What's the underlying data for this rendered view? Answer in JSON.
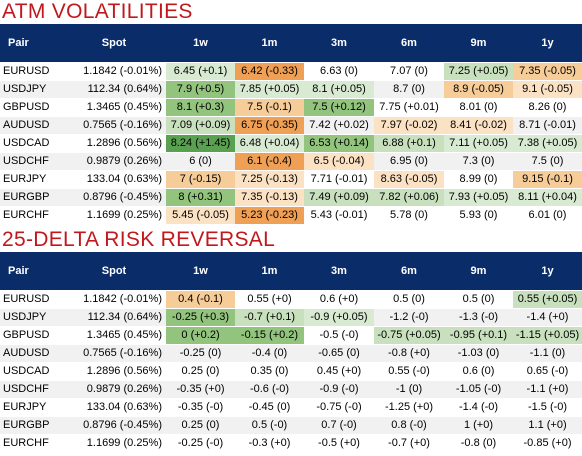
{
  "atm": {
    "title": "ATM VOLATILITIES",
    "headers": [
      "Pair",
      "Spot",
      "1w",
      "1m",
      "3m",
      "6m",
      "9m",
      "1y"
    ],
    "rows": [
      {
        "pair": "EURUSD",
        "spot": "1.1842 (-0.01%)",
        "vals": [
          "6.45 (+0.1)",
          "6.42 (-0.33)",
          "6.63 (0)",
          "7.07 (0)",
          "7.25 (+0.05)",
          "7.35 (-0.05)"
        ],
        "colors": [
          "lgreen2",
          "orange",
          "",
          "",
          "lgreen",
          "lorange"
        ]
      },
      {
        "pair": "USDJPY",
        "spot": "112.34 (0.64%)",
        "vals": [
          "7.9 (+0.5)",
          "7.85 (+0.05)",
          "8.1 (+0.05)",
          "8.7 (0)",
          "8.9 (-0.05)",
          "9.1 (-0.05)"
        ],
        "colors": [
          "green",
          "lgreen2",
          "lgreen2",
          "",
          "lorange",
          "llorange"
        ]
      },
      {
        "pair": "GBPUSD",
        "spot": "1.3465 (0.45%)",
        "vals": [
          "8.1 (+0.3)",
          "7.5 (-0.1)",
          "7.5 (+0.12)",
          "7.75 (+0.01)",
          "8.01 (0)",
          "8.26 (0)"
        ],
        "colors": [
          "green",
          "lorange",
          "green",
          "",
          "",
          ""
        ]
      },
      {
        "pair": "AUDUSD",
        "spot": "0.7565 (-0.16%)",
        "vals": [
          "7.09 (+0.09)",
          "6.75 (-0.35)",
          "7.42 (+0.02)",
          "7.97 (-0.02)",
          "8.41 (-0.02)",
          "8.71 (-0.01)"
        ],
        "colors": [
          "lgreen",
          "orange",
          "",
          "llorange",
          "llorange",
          ""
        ]
      },
      {
        "pair": "USDCAD",
        "spot": "1.2896 (0.56%)",
        "vals": [
          "8.24 (+1.45)",
          "6.48 (+0.04)",
          "6.53 (+0.14)",
          "6.88 (+0.1)",
          "7.11 (+0.05)",
          "7.38 (+0.05)"
        ],
        "colors": [
          "dgreen",
          "lgreen2",
          "green",
          "lgreen",
          "lgreen2",
          "lgreen2"
        ]
      },
      {
        "pair": "USDCHF",
        "spot": "0.9879 (0.26%)",
        "vals": [
          "6 (0)",
          "6.1 (-0.4)",
          "6.5 (-0.04)",
          "6.95 (0)",
          "7.3 (0)",
          "7.5 (0)"
        ],
        "colors": [
          "",
          "orange",
          "llorange",
          "",
          "",
          ""
        ]
      },
      {
        "pair": "EURJPY",
        "spot": "133.04 (0.63%)",
        "vals": [
          "7 (-0.15)",
          "7.25 (-0.13)",
          "7.71 (-0.01)",
          "8.63 (-0.05)",
          "8.99 (0)",
          "9.15 (-0.1)"
        ],
        "colors": [
          "lorange",
          "llorange",
          "",
          "llorange",
          "",
          "lorange"
        ]
      },
      {
        "pair": "EURGBP",
        "spot": "0.8796 (-0.45%)",
        "vals": [
          "8 (+0.31)",
          "7.35 (-0.13)",
          "7.49 (+0.09)",
          "7.82 (+0.06)",
          "7.93 (+0.05)",
          "8.11 (+0.04)"
        ],
        "colors": [
          "green",
          "llorange",
          "lgreen",
          "lgreen",
          "lgreen2",
          "lgreen2"
        ]
      },
      {
        "pair": "EURCHF",
        "spot": "1.1699 (0.25%)",
        "vals": [
          "5.45 (-0.05)",
          "5.23 (-0.23)",
          "5.43 (-0.01)",
          "5.78 (0)",
          "5.93 (0)",
          "6.01 (0)"
        ],
        "colors": [
          "llorange",
          "orange",
          "",
          "",
          "",
          ""
        ]
      }
    ]
  },
  "rr": {
    "title": "25-DELTA RISK REVERSAL",
    "headers": [
      "Pair",
      "Spot",
      "1w",
      "1m",
      "3m",
      "6m",
      "9m",
      "1y"
    ],
    "rows": [
      {
        "pair": "EURUSD",
        "spot": "1.1842 (-0.01%)",
        "vals": [
          "0.4 (-0.1)",
          "0.55 (+0)",
          "0.6 (+0)",
          "0.5 (0)",
          "0.5 (0)",
          "0.55 (+0.05)"
        ],
        "colors": [
          "lorange",
          "",
          "",
          "",
          "",
          "lgreen"
        ]
      },
      {
        "pair": "USDJPY",
        "spot": "112.34 (0.64%)",
        "vals": [
          "-0.25 (+0.3)",
          "-0.7 (+0.1)",
          "-0.9 (+0.05)",
          "-1.2 (-0)",
          "-1.3 (-0)",
          "-1.4 (+0)"
        ],
        "colors": [
          "green",
          "lgreen",
          "lgreen2",
          "",
          "",
          ""
        ]
      },
      {
        "pair": "GBPUSD",
        "spot": "1.3465 (0.45%)",
        "vals": [
          "0 (+0.2)",
          "-0.15 (+0.2)",
          "-0.5 (-0)",
          "-0.75 (+0.05)",
          "-0.95 (+0.1)",
          "-1.15 (+0.05)"
        ],
        "colors": [
          "green",
          "green",
          "",
          "lgreen",
          "lgreen",
          "lgreen"
        ]
      },
      {
        "pair": "AUDUSD",
        "spot": "0.7565 (-0.16%)",
        "vals": [
          "-0.25 (0)",
          "-0.4 (0)",
          "-0.65 (0)",
          "-0.8 (+0)",
          "-1.03 (0)",
          "-1.1 (0)"
        ],
        "colors": [
          "",
          "",
          "",
          "",
          "",
          ""
        ]
      },
      {
        "pair": "USDCAD",
        "spot": "1.2896 (0.56%)",
        "vals": [
          "0.25 (0)",
          "0.35 (0)",
          "0.45 (+0)",
          "0.55 (-0)",
          "0.6 (0)",
          "0.65 (-0)"
        ],
        "colors": [
          "",
          "",
          "",
          "",
          "",
          ""
        ]
      },
      {
        "pair": "USDCHF",
        "spot": "0.9879 (0.26%)",
        "vals": [
          "-0.35 (+0)",
          "-0.6 (-0)",
          "-0.9 (-0)",
          "-1 (0)",
          "-1.05 (-0)",
          "-1.1 (+0)"
        ],
        "colors": [
          "",
          "",
          "",
          "",
          "",
          ""
        ]
      },
      {
        "pair": "EURJPY",
        "spot": "133.04 (0.63%)",
        "vals": [
          "-0.35 (-0)",
          "-0.45 (0)",
          "-0.75 (-0)",
          "-1.25 (+0)",
          "-1.4 (-0)",
          "-1.5 (-0)"
        ],
        "colors": [
          "",
          "",
          "",
          "",
          "",
          ""
        ]
      },
      {
        "pair": "EURGBP",
        "spot": "0.8796 (-0.45%)",
        "vals": [
          "0.25 (0)",
          "0.5 (-0)",
          "0.7 (-0)",
          "0.8 (-0)",
          "1 (+0)",
          "1.1 (+0)"
        ],
        "colors": [
          "",
          "",
          "",
          "",
          "",
          ""
        ]
      },
      {
        "pair": "EURCHF",
        "spot": "1.1699 (0.25%)",
        "vals": [
          "-0.25 (-0)",
          "-0.3 (+0)",
          "-0.5 (+0)",
          "-0.7 (+0)",
          "-0.8 (0)",
          "-0.85 (+0)"
        ],
        "colors": [
          "",
          "",
          "",
          "",
          "",
          ""
        ]
      }
    ]
  }
}
